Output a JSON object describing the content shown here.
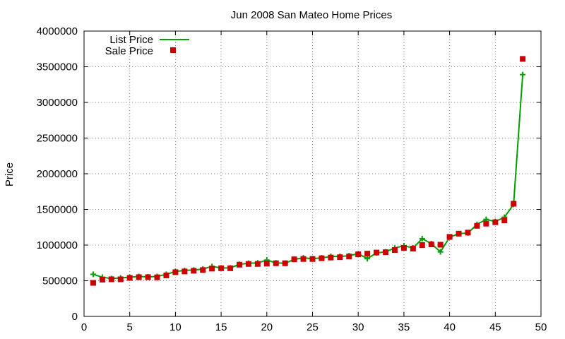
{
  "chart_data": {
    "type": "line",
    "title": "Jun 2008 San Mateo Home Prices",
    "xlabel": "",
    "ylabel": "Price",
    "xlim": [
      0,
      50
    ],
    "ylim": [
      0,
      4000000
    ],
    "x_ticks": [
      0,
      5,
      10,
      15,
      20,
      25,
      30,
      35,
      40,
      45,
      50
    ],
    "y_ticks": [
      0,
      500000,
      1000000,
      1500000,
      2000000,
      2500000,
      3000000,
      3500000,
      4000000
    ],
    "grid": true,
    "legend_position": "top-left",
    "series": [
      {
        "name": "List Price",
        "style": "line-plus",
        "color": "#00a000",
        "x": [
          1,
          2,
          3,
          4,
          5,
          6,
          7,
          8,
          9,
          10,
          11,
          12,
          13,
          14,
          15,
          16,
          17,
          18,
          19,
          20,
          21,
          22,
          23,
          24,
          25,
          26,
          27,
          28,
          29,
          30,
          31,
          32,
          33,
          34,
          35,
          36,
          37,
          38,
          39,
          40,
          41,
          42,
          43,
          44,
          45,
          46,
          47,
          48
        ],
        "y": [
          590000,
          550000,
          530000,
          540000,
          550000,
          560000,
          555000,
          560000,
          590000,
          630000,
          645000,
          650000,
          665000,
          700000,
          680000,
          680000,
          730000,
          745000,
          750000,
          790000,
          750000,
          745000,
          800000,
          820000,
          810000,
          820000,
          840000,
          840000,
          850000,
          880000,
          810000,
          890000,
          905000,
          960000,
          990000,
          960000,
          1090000,
          1020000,
          905000,
          1110000,
          1160000,
          1170000,
          1290000,
          1360000,
          1330000,
          1390000,
          1570000,
          3390000
        ]
      },
      {
        "name": "Sale Price",
        "style": "square-points",
        "color": "#cc0000",
        "x": [
          1,
          2,
          3,
          4,
          5,
          6,
          7,
          8,
          9,
          10,
          11,
          12,
          13,
          14,
          15,
          16,
          17,
          18,
          19,
          20,
          21,
          22,
          23,
          24,
          25,
          26,
          27,
          28,
          29,
          30,
          31,
          32,
          33,
          34,
          35,
          36,
          37,
          38,
          39,
          40,
          41,
          42,
          43,
          44,
          45,
          46,
          47,
          48
        ],
        "y": [
          470000,
          515000,
          520000,
          520000,
          540000,
          550000,
          550000,
          548000,
          575000,
          620000,
          630000,
          640000,
          650000,
          670000,
          675000,
          675000,
          725000,
          735000,
          735000,
          740000,
          745000,
          745000,
          800000,
          805000,
          805000,
          815000,
          825000,
          830000,
          840000,
          870000,
          880000,
          895000,
          900000,
          930000,
          960000,
          950000,
          1000000,
          1010000,
          1005000,
          1115000,
          1160000,
          1175000,
          1270000,
          1300000,
          1320000,
          1345000,
          1580000,
          3610000
        ]
      }
    ]
  }
}
